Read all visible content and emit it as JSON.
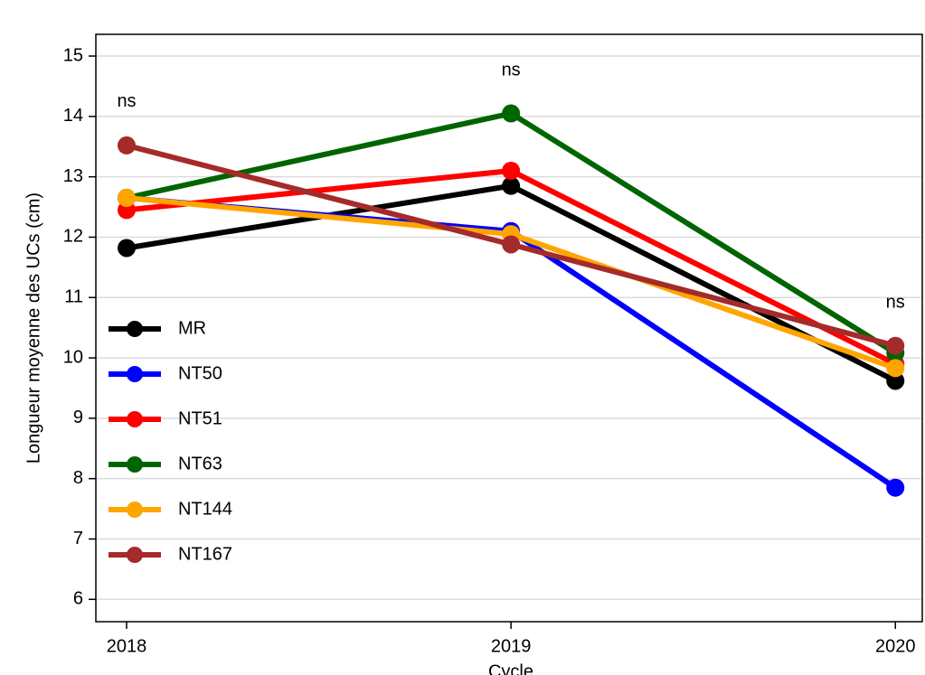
{
  "chart_data": {
    "type": "line",
    "x_label": "Cycle",
    "y_label": "Longueur moyenne des UCs (cm)",
    "x": [
      2018,
      2019,
      2020
    ],
    "xlim": [
      2017.92,
      2020.07
    ],
    "xticks": [
      2018,
      2019,
      2020
    ],
    "ylim": [
      5.63,
      15.36
    ],
    "yticks": [
      6,
      7,
      8,
      9,
      10,
      11,
      12,
      13,
      14,
      15
    ],
    "grid": true,
    "legend": "left",
    "series": [
      {
        "name": "MR",
        "color": "#000000",
        "values": [
          11.82,
          12.85,
          9.62
        ]
      },
      {
        "name": "NT50",
        "color": "#0000ff",
        "values": [
          12.65,
          12.1,
          7.85
        ]
      },
      {
        "name": "NT51",
        "color": "#ff0000",
        "values": [
          12.45,
          13.1,
          9.9
        ]
      },
      {
        "name": "NT63",
        "color": "#006400",
        "values": [
          12.65,
          14.05,
          10.08
        ]
      },
      {
        "name": "NT144",
        "color": "#ffa500",
        "values": [
          12.65,
          12.05,
          9.83
        ]
      },
      {
        "name": "NT167",
        "color": "#a52a2a",
        "values": [
          13.52,
          11.88,
          10.2
        ]
      }
    ],
    "annotations": [
      {
        "text": "ns",
        "x": 2018,
        "y": 14.24
      },
      {
        "text": "ns",
        "x": 2019,
        "y": 14.76
      },
      {
        "text": "ns",
        "x": 2020,
        "y": 10.91
      }
    ]
  }
}
